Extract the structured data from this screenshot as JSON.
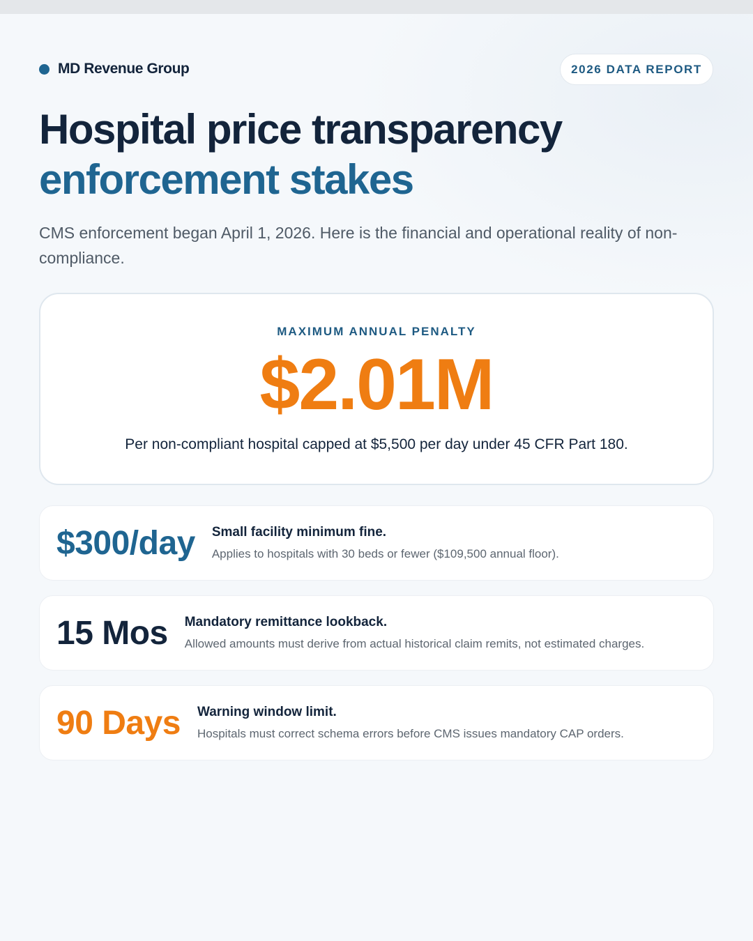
{
  "brand": {
    "name": "MD Revenue Group",
    "badge": "2026 DATA REPORT"
  },
  "headline": {
    "line1": "Hospital price transparency",
    "line2": "enforcement stakes"
  },
  "subtitle": "CMS enforcement began April 1, 2026. Here is the financial and operational reality of non-compliance.",
  "hero": {
    "label": "MAXIMUM ANNUAL PENALTY",
    "value": "$2.01M",
    "description": "Per non-compliant hospital capped at $5,500 per day under 45 CFR Part 180."
  },
  "stats": [
    {
      "value": "$300/day",
      "title": "Small facility minimum fine.",
      "description": "Applies to hospitals with 30 beds or fewer ($109,500 annual floor)."
    },
    {
      "value": "15 Mos",
      "title": "Mandatory remittance lookback.",
      "description": "Allowed amounts must derive from actual historical claim remits, not estimated charges."
    },
    {
      "value": "90 Days",
      "title": "Warning window limit.",
      "description": "Hospitals must correct schema errors before CMS issues mandatory CAP orders."
    }
  ],
  "colors": {
    "navy": "#13243b",
    "blue": "#1f6591",
    "orange": "#ef7d12",
    "background": "#f5f8fb"
  }
}
